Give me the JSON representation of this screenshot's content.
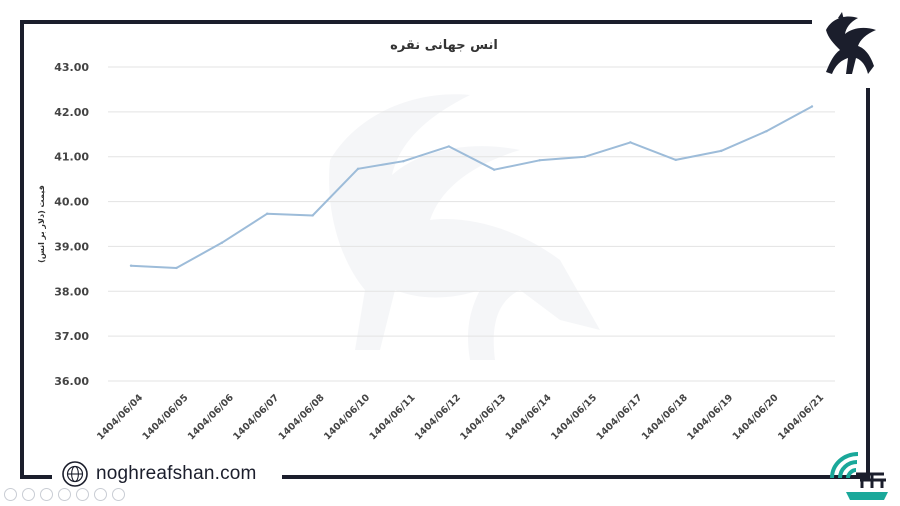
{
  "chart_data": {
    "type": "line",
    "title": "انس جهانی نقره",
    "ylabel": "قیمت (دلار بر انس)",
    "xlabel": "",
    "categories": [
      "1404/06/04",
      "1404/06/05",
      "1404/06/06",
      "1404/06/07",
      "1404/06/08",
      "1404/06/10",
      "1404/06/11",
      "1404/06/12",
      "1404/06/13",
      "1404/06/14",
      "1404/06/15",
      "1404/06/17",
      "1404/06/18",
      "1404/06/19",
      "1404/06/20",
      "1404/06/21"
    ],
    "series": [
      {
        "values": [
          38.57,
          38.52,
          39.08,
          39.73,
          39.69,
          40.73,
          40.9,
          41.23,
          40.71,
          40.92,
          41.0,
          41.32,
          40.93,
          41.13,
          41.57,
          42.12
        ]
      }
    ],
    "yticks": [
      "43.00",
      "42.00",
      "41.00",
      "40.00",
      "39.00",
      "38.00",
      "37.00",
      "36.00"
    ],
    "ylim": [
      36,
      43
    ],
    "grid": true,
    "line_color": "#9dbcd9"
  },
  "footer": {
    "website": "noghreafshan.com",
    "globe_icon": "globe-icon"
  },
  "colors": {
    "frame": "#1b1e2c",
    "grid": "#e3e3e3",
    "text": "#444444"
  }
}
